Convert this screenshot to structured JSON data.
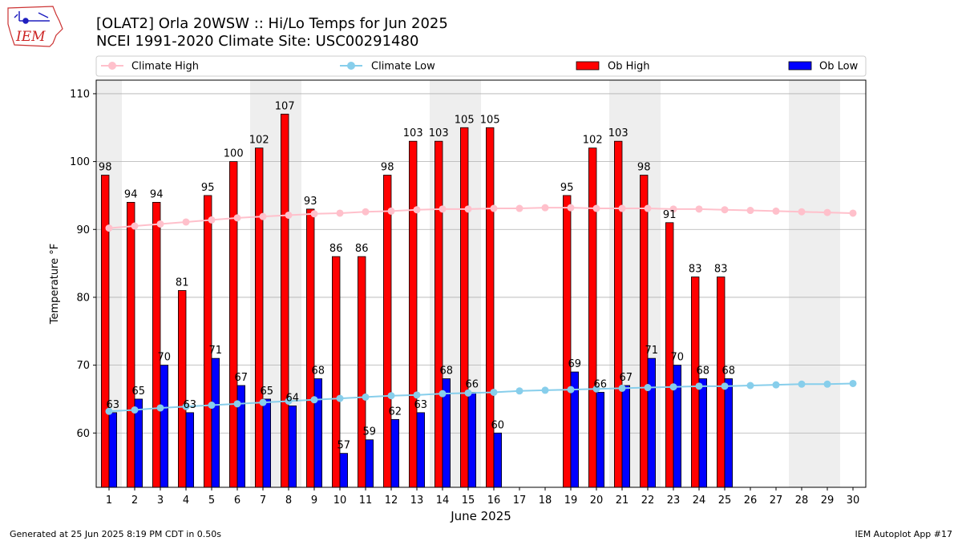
{
  "header": {
    "logo_text": "IEM",
    "title_line1": "[OLAT2] Orla 20WSW :: Hi/Lo Temps for Jun 2025",
    "title_line2": "NCEI 1991-2020 Climate Site: USC00291480"
  },
  "legend": {
    "climate_high": "Climate High",
    "climate_low": "Climate Low",
    "ob_high": "Ob High",
    "ob_low": "Ob Low"
  },
  "footer": {
    "generated": "Generated at 25 Jun 2025 8:19 PM CDT in 0.50s",
    "app": "IEM Autoplot App #17"
  },
  "colors": {
    "ob_high": "#ff0000",
    "ob_low": "#0000ff",
    "climate_high": "#ffc0cb",
    "climate_low": "#87ceeb",
    "weekend_shade": "#eeeeee",
    "grid": "#b0b0b0"
  },
  "chart_data": {
    "type": "bar",
    "xlabel": "June 2025",
    "ylabel": "Temperature °F",
    "ylim": [
      52,
      112
    ],
    "yticks": [
      60,
      70,
      80,
      90,
      100,
      110
    ],
    "grid": true,
    "legend_position": "top",
    "categories": [
      "1",
      "2",
      "3",
      "4",
      "5",
      "6",
      "7",
      "8",
      "9",
      "10",
      "11",
      "12",
      "13",
      "14",
      "15",
      "16",
      "17",
      "18",
      "19",
      "20",
      "21",
      "22",
      "23",
      "24",
      "25",
      "26",
      "27",
      "28",
      "29",
      "30"
    ],
    "weekend_days": [
      1,
      7,
      8,
      14,
      15,
      21,
      22,
      28,
      29
    ],
    "series": [
      {
        "name": "Ob High",
        "kind": "bar",
        "values": [
          98,
          94,
          94,
          81,
          95,
          100,
          102,
          107,
          93,
          86,
          86,
          98,
          103,
          103,
          105,
          105,
          null,
          null,
          95,
          102,
          103,
          98,
          91,
          83,
          83,
          null,
          null,
          null,
          null,
          null
        ]
      },
      {
        "name": "Ob Low",
        "kind": "bar",
        "values": [
          63,
          65,
          70,
          63,
          71,
          67,
          65,
          64,
          68,
          57,
          59,
          62,
          63,
          68,
          66,
          60,
          null,
          null,
          69,
          66,
          67,
          71,
          70,
          68,
          68,
          null,
          null,
          null,
          null,
          null
        ]
      },
      {
        "name": "Climate High",
        "kind": "line",
        "values": [
          90.2,
          90.5,
          90.8,
          91.1,
          91.4,
          91.7,
          91.9,
          92.1,
          92.3,
          92.4,
          92.6,
          92.7,
          92.9,
          93.0,
          93.0,
          93.1,
          93.1,
          93.2,
          93.2,
          93.1,
          93.1,
          93.1,
          93.0,
          93.0,
          92.9,
          92.8,
          92.7,
          92.6,
          92.5,
          92.4
        ]
      },
      {
        "name": "Climate Low",
        "kind": "line",
        "values": [
          63.2,
          63.4,
          63.7,
          63.9,
          64.1,
          64.3,
          64.5,
          64.7,
          64.9,
          65.1,
          65.3,
          65.5,
          65.6,
          65.8,
          65.9,
          66.0,
          66.2,
          66.3,
          66.4,
          66.5,
          66.6,
          66.7,
          66.8,
          66.9,
          66.9,
          67.0,
          67.1,
          67.2,
          67.2,
          67.3
        ]
      }
    ]
  }
}
